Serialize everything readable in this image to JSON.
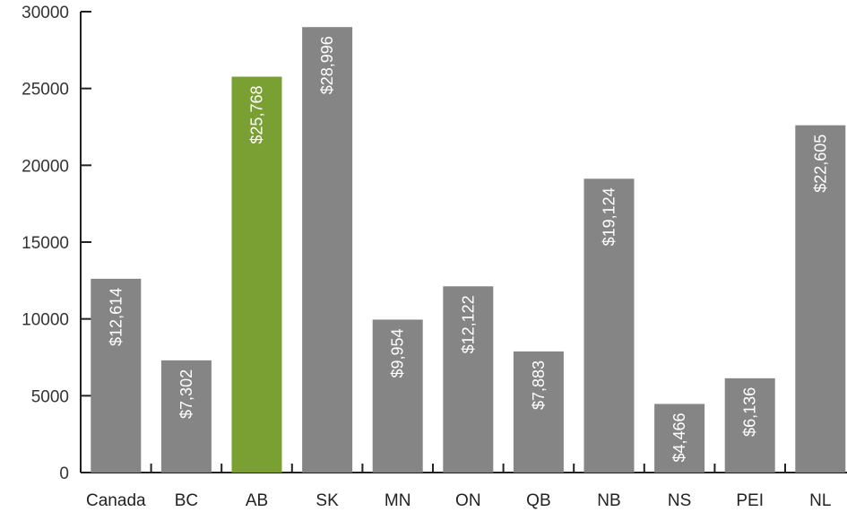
{
  "chart_data": {
    "type": "bar",
    "categories": [
      "Canada",
      "BC",
      "AB",
      "SK",
      "MN",
      "ON",
      "QB",
      "NB",
      "NS",
      "PEI",
      "NL"
    ],
    "values": [
      12614,
      7302,
      25768,
      28996,
      9954,
      12122,
      7883,
      19124,
      4466,
      6136,
      22605
    ],
    "data_labels": [
      "$12,614",
      "$7,302",
      "$25,768",
      "$28,996",
      "$9,954",
      "$12,122",
      "$7,883",
      "$19,124",
      "$4,466",
      "$6,136",
      "$22,605"
    ],
    "title": "",
    "xlabel": "",
    "ylabel": "",
    "ylim": [
      0,
      30000
    ],
    "yticks": [
      "0",
      "5000",
      "10000",
      "15000",
      "20000",
      "25000",
      "30000"
    ],
    "highlight_category": "AB",
    "colors": {
      "bar": "#858585",
      "highlight": "#7aa033",
      "axis": "#222222"
    },
    "grid": false,
    "legend": "none"
  }
}
